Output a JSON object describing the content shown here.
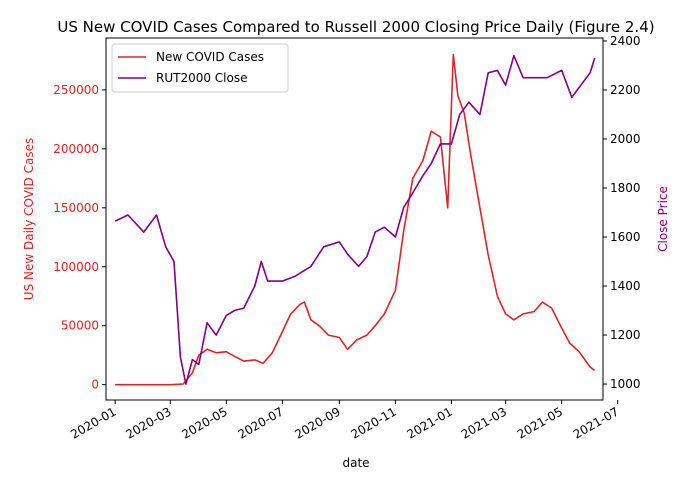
{
  "chart_data": {
    "type": "line",
    "title": "US New COVID Cases Compared to Russell 2000 Closing Price Daily (Figure 2.4)",
    "xlabel": "date",
    "ylabel_left": "US New Daily COVID Cases",
    "ylabel_right": "Close Price",
    "xlim": [
      "2019-12-22",
      "2021-06-15"
    ],
    "ylim_left": [
      -13000,
      294000
    ],
    "ylim_right": [
      935,
      2412
    ],
    "x_ticks": [
      "2020-01",
      "2020-03",
      "2020-05",
      "2020-07",
      "2020-09",
      "2020-11",
      "2021-01",
      "2021-03",
      "2021-05",
      "2021-07"
    ],
    "y_ticks_left": [
      0,
      50000,
      100000,
      150000,
      200000,
      250000
    ],
    "y_ticks_right": [
      1000,
      1200,
      1400,
      1600,
      1800,
      2000,
      2200,
      2400
    ],
    "legend_position": "upper-left",
    "colors": {
      "covid": "#d62728",
      "rut": "#800080"
    },
    "series": [
      {
        "name": "New COVID Cases",
        "axis": "left",
        "points": [
          [
            "2020-01-01",
            0
          ],
          [
            "2020-02-01",
            0
          ],
          [
            "2020-03-01",
            0
          ],
          [
            "2020-03-15",
            600
          ],
          [
            "2020-03-25",
            10000
          ],
          [
            "2020-04-01",
            25000
          ],
          [
            "2020-04-10",
            30000
          ],
          [
            "2020-04-20",
            27000
          ],
          [
            "2020-05-01",
            28000
          ],
          [
            "2020-05-10",
            24000
          ],
          [
            "2020-05-20",
            20000
          ],
          [
            "2020-06-01",
            21000
          ],
          [
            "2020-06-10",
            18000
          ],
          [
            "2020-06-20",
            27000
          ],
          [
            "2020-07-01",
            45000
          ],
          [
            "2020-07-10",
            60000
          ],
          [
            "2020-07-20",
            68000
          ],
          [
            "2020-07-25",
            70000
          ],
          [
            "2020-08-01",
            55000
          ],
          [
            "2020-08-10",
            50000
          ],
          [
            "2020-08-20",
            42000
          ],
          [
            "2020-09-01",
            40000
          ],
          [
            "2020-09-10",
            30000
          ],
          [
            "2020-09-20",
            38000
          ],
          [
            "2020-10-01",
            42000
          ],
          [
            "2020-10-10",
            50000
          ],
          [
            "2020-10-20",
            60000
          ],
          [
            "2020-11-01",
            80000
          ],
          [
            "2020-11-10",
            130000
          ],
          [
            "2020-11-20",
            175000
          ],
          [
            "2020-12-01",
            190000
          ],
          [
            "2020-12-10",
            215000
          ],
          [
            "2020-12-20",
            210000
          ],
          [
            "2020-12-28",
            150000
          ],
          [
            "2021-01-03",
            280000
          ],
          [
            "2021-01-08",
            245000
          ],
          [
            "2021-01-15",
            230000
          ],
          [
            "2021-01-22",
            195000
          ],
          [
            "2021-02-01",
            150000
          ],
          [
            "2021-02-10",
            110000
          ],
          [
            "2021-02-20",
            75000
          ],
          [
            "2021-03-01",
            60000
          ],
          [
            "2021-03-10",
            55000
          ],
          [
            "2021-03-20",
            60000
          ],
          [
            "2021-04-01",
            62000
          ],
          [
            "2021-04-10",
            70000
          ],
          [
            "2021-04-20",
            65000
          ],
          [
            "2021-05-01",
            48000
          ],
          [
            "2021-05-10",
            35000
          ],
          [
            "2021-05-20",
            28000
          ],
          [
            "2021-06-01",
            15000
          ],
          [
            "2021-06-06",
            12000
          ]
        ]
      },
      {
        "name": "RUT2000 Close",
        "axis": "right",
        "points": [
          [
            "2020-01-01",
            1665
          ],
          [
            "2020-01-15",
            1690
          ],
          [
            "2020-02-01",
            1620
          ],
          [
            "2020-02-15",
            1690
          ],
          [
            "2020-02-25",
            1560
          ],
          [
            "2020-03-05",
            1500
          ],
          [
            "2020-03-12",
            1110
          ],
          [
            "2020-03-18",
            1000
          ],
          [
            "2020-03-25",
            1100
          ],
          [
            "2020-04-01",
            1080
          ],
          [
            "2020-04-10",
            1250
          ],
          [
            "2020-04-20",
            1200
          ],
          [
            "2020-05-01",
            1280
          ],
          [
            "2020-05-10",
            1300
          ],
          [
            "2020-05-20",
            1310
          ],
          [
            "2020-06-01",
            1400
          ],
          [
            "2020-06-08",
            1500
          ],
          [
            "2020-06-15",
            1420
          ],
          [
            "2020-07-01",
            1420
          ],
          [
            "2020-07-15",
            1440
          ],
          [
            "2020-08-01",
            1480
          ],
          [
            "2020-08-15",
            1560
          ],
          [
            "2020-09-01",
            1580
          ],
          [
            "2020-09-10",
            1530
          ],
          [
            "2020-09-22",
            1480
          ],
          [
            "2020-10-01",
            1520
          ],
          [
            "2020-10-10",
            1620
          ],
          [
            "2020-10-20",
            1640
          ],
          [
            "2020-11-01",
            1600
          ],
          [
            "2020-11-10",
            1720
          ],
          [
            "2020-11-20",
            1780
          ],
          [
            "2020-12-01",
            1850
          ],
          [
            "2020-12-10",
            1900
          ],
          [
            "2020-12-20",
            1980
          ],
          [
            "2021-01-01",
            1980
          ],
          [
            "2021-01-10",
            2100
          ],
          [
            "2021-01-20",
            2150
          ],
          [
            "2021-02-01",
            2100
          ],
          [
            "2021-02-10",
            2270
          ],
          [
            "2021-02-20",
            2280
          ],
          [
            "2021-03-01",
            2220
          ],
          [
            "2021-03-10",
            2340
          ],
          [
            "2021-03-20",
            2250
          ],
          [
            "2021-04-01",
            2250
          ],
          [
            "2021-04-15",
            2250
          ],
          [
            "2021-05-01",
            2280
          ],
          [
            "2021-05-12",
            2170
          ],
          [
            "2021-05-20",
            2210
          ],
          [
            "2021-06-01",
            2270
          ],
          [
            "2021-06-06",
            2330
          ]
        ]
      }
    ]
  }
}
